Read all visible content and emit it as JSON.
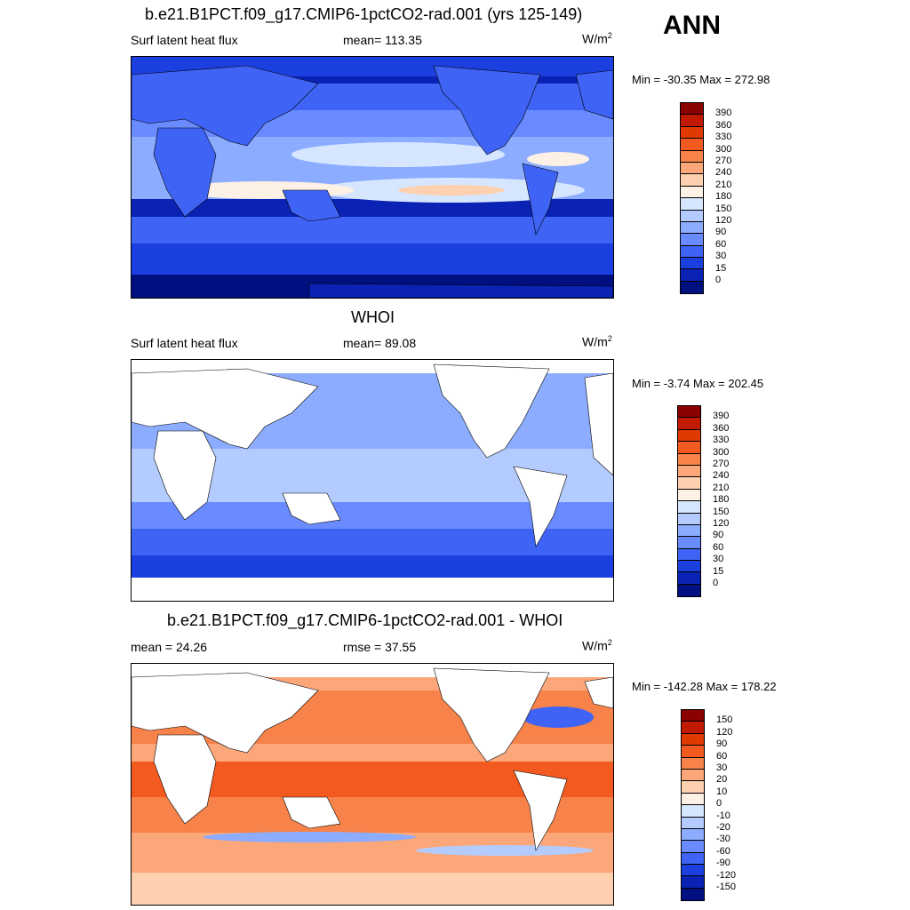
{
  "season": "ANN",
  "panels": [
    {
      "title": "b.e21.B1PCT.f09_g17.CMIP6-1pctCO2-rad.001 (yrs 125-149)",
      "left_label": "Surf latent heat flux",
      "center_label": "mean= 113.35",
      "units": "W/m",
      "units_sup": "2",
      "minmax": "Min = -30.35 Max = 272.98",
      "type": "abs"
    },
    {
      "title": "WHOI",
      "left_label": "Surf latent heat flux",
      "center_label": "mean=  89.08",
      "units": "W/m",
      "units_sup": "2",
      "minmax": "Min =  -3.74 Max = 202.45",
      "type": "abs"
    },
    {
      "title": "b.e21.B1PCT.f09_g17.CMIP6-1pctCO2-rad.001 - WHOI",
      "left_label": "mean =  24.26",
      "center_label": "rmse =  37.55",
      "units": "W/m",
      "units_sup": "2",
      "minmax": "Min = -142.28 Max = 178.22",
      "type": "diff"
    }
  ],
  "colorbar_abs": {
    "levels": [
      "390",
      "360",
      "330",
      "300",
      "270",
      "240",
      "210",
      "180",
      "150",
      "120",
      "90",
      "60",
      "30",
      "15",
      "0"
    ],
    "colors": [
      "#8b0000",
      "#c21a00",
      "#e03a00",
      "#f25a20",
      "#f7834a",
      "#fba77a",
      "#fdd0b0",
      "#fdf0e4",
      "#d6e6ff",
      "#b3cbff",
      "#8cacff",
      "#6a8bff",
      "#3f64f5",
      "#1c3fe0",
      "#0a23b5",
      "#001080"
    ]
  },
  "colorbar_diff": {
    "levels": [
      "150",
      "120",
      "90",
      "60",
      "30",
      "20",
      "10",
      "0",
      "-10",
      "-20",
      "-30",
      "-60",
      "-90",
      "-120",
      "-150"
    ],
    "colors": [
      "#8b0000",
      "#c21a00",
      "#e03a00",
      "#f25a20",
      "#f7834a",
      "#fba77a",
      "#fdd0b0",
      "#fdf0e4",
      "#d6e6ff",
      "#b3cbff",
      "#8cacff",
      "#6a8bff",
      "#3f64f5",
      "#1c3fe0",
      "#0a23b5",
      "#001080"
    ]
  }
}
